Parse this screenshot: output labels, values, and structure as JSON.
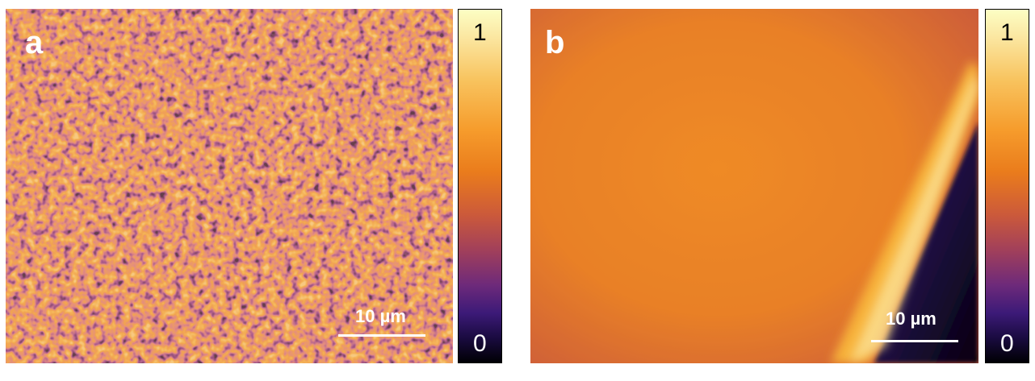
{
  "panels": [
    {
      "letter": "a",
      "image_description_icon": "noisy-orange-speckle-texture-icon",
      "scalebar_label": "10 µm",
      "colorbar": {
        "max_label": "1",
        "min_label": "0"
      }
    },
    {
      "letter": "b",
      "image_description_icon": "smooth-orange-field-with-bright-diagonal-edge-icon",
      "scalebar_label": "10 µm",
      "colorbar": {
        "max_label": "1",
        "min_label": "0"
      }
    }
  ],
  "colormap": {
    "name": "inferno",
    "stops": [
      "#000004",
      "#3c1a78",
      "#a2405a",
      "#ea7c1c",
      "#f8c35e",
      "#fcfec4"
    ]
  }
}
